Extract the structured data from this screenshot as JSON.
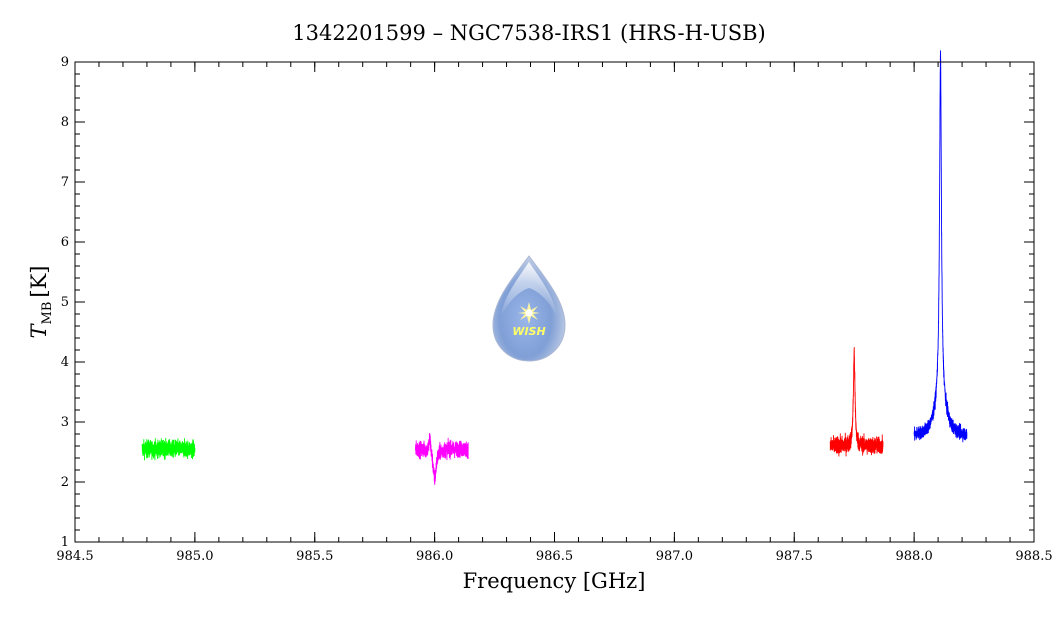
{
  "chart_data": {
    "type": "line",
    "title": "1342201599 – NGC7538-IRS1 (HRS-H-USB)",
    "xlabel": "Frequency [GHz]",
    "ylabel": {
      "symbol": "T",
      "subscript": "MB",
      "unit": "[K]"
    },
    "xlim": [
      984.5,
      988.5
    ],
    "ylim": [
      1,
      9
    ],
    "x_ticks": [
      "984.5",
      "985.0",
      "985.5",
      "986.0",
      "986.5",
      "987.0",
      "987.5",
      "988.0",
      "988.5"
    ],
    "y_ticks": [
      "1",
      "2",
      "3",
      "4",
      "5",
      "6",
      "7",
      "8",
      "9"
    ],
    "grid": false,
    "series": [
      {
        "color": "#00ff00",
        "x_range": [
          984.78,
          985.0
        ],
        "baseline": 2.55,
        "noise": 0.13,
        "features": []
      },
      {
        "color": "#ff00ff",
        "x_range": [
          985.92,
          986.14
        ],
        "baseline": 2.55,
        "noise": 0.12,
        "features": [
          {
            "x": 986.0,
            "amp": -0.5,
            "width": 0.008
          },
          {
            "x": 985.98,
            "amp": 0.25,
            "width": 0.004
          }
        ]
      },
      {
        "color": "#ff0000",
        "x_range": [
          987.65,
          987.87
        ],
        "baseline": 2.6,
        "noise": 0.13,
        "features": [
          {
            "x": 987.75,
            "amp": 1.55,
            "width": 0.004
          }
        ]
      },
      {
        "color": "#0000ff",
        "x_range": [
          988.0,
          988.22
        ],
        "baseline": 2.75,
        "noise": 0.1,
        "features": [
          {
            "x": 988.11,
            "amp": 5.7,
            "width": 0.0045
          },
          {
            "x": 988.11,
            "amp": 0.7,
            "width": 0.025
          }
        ]
      }
    ]
  },
  "logo": {
    "text": "WISH"
  }
}
